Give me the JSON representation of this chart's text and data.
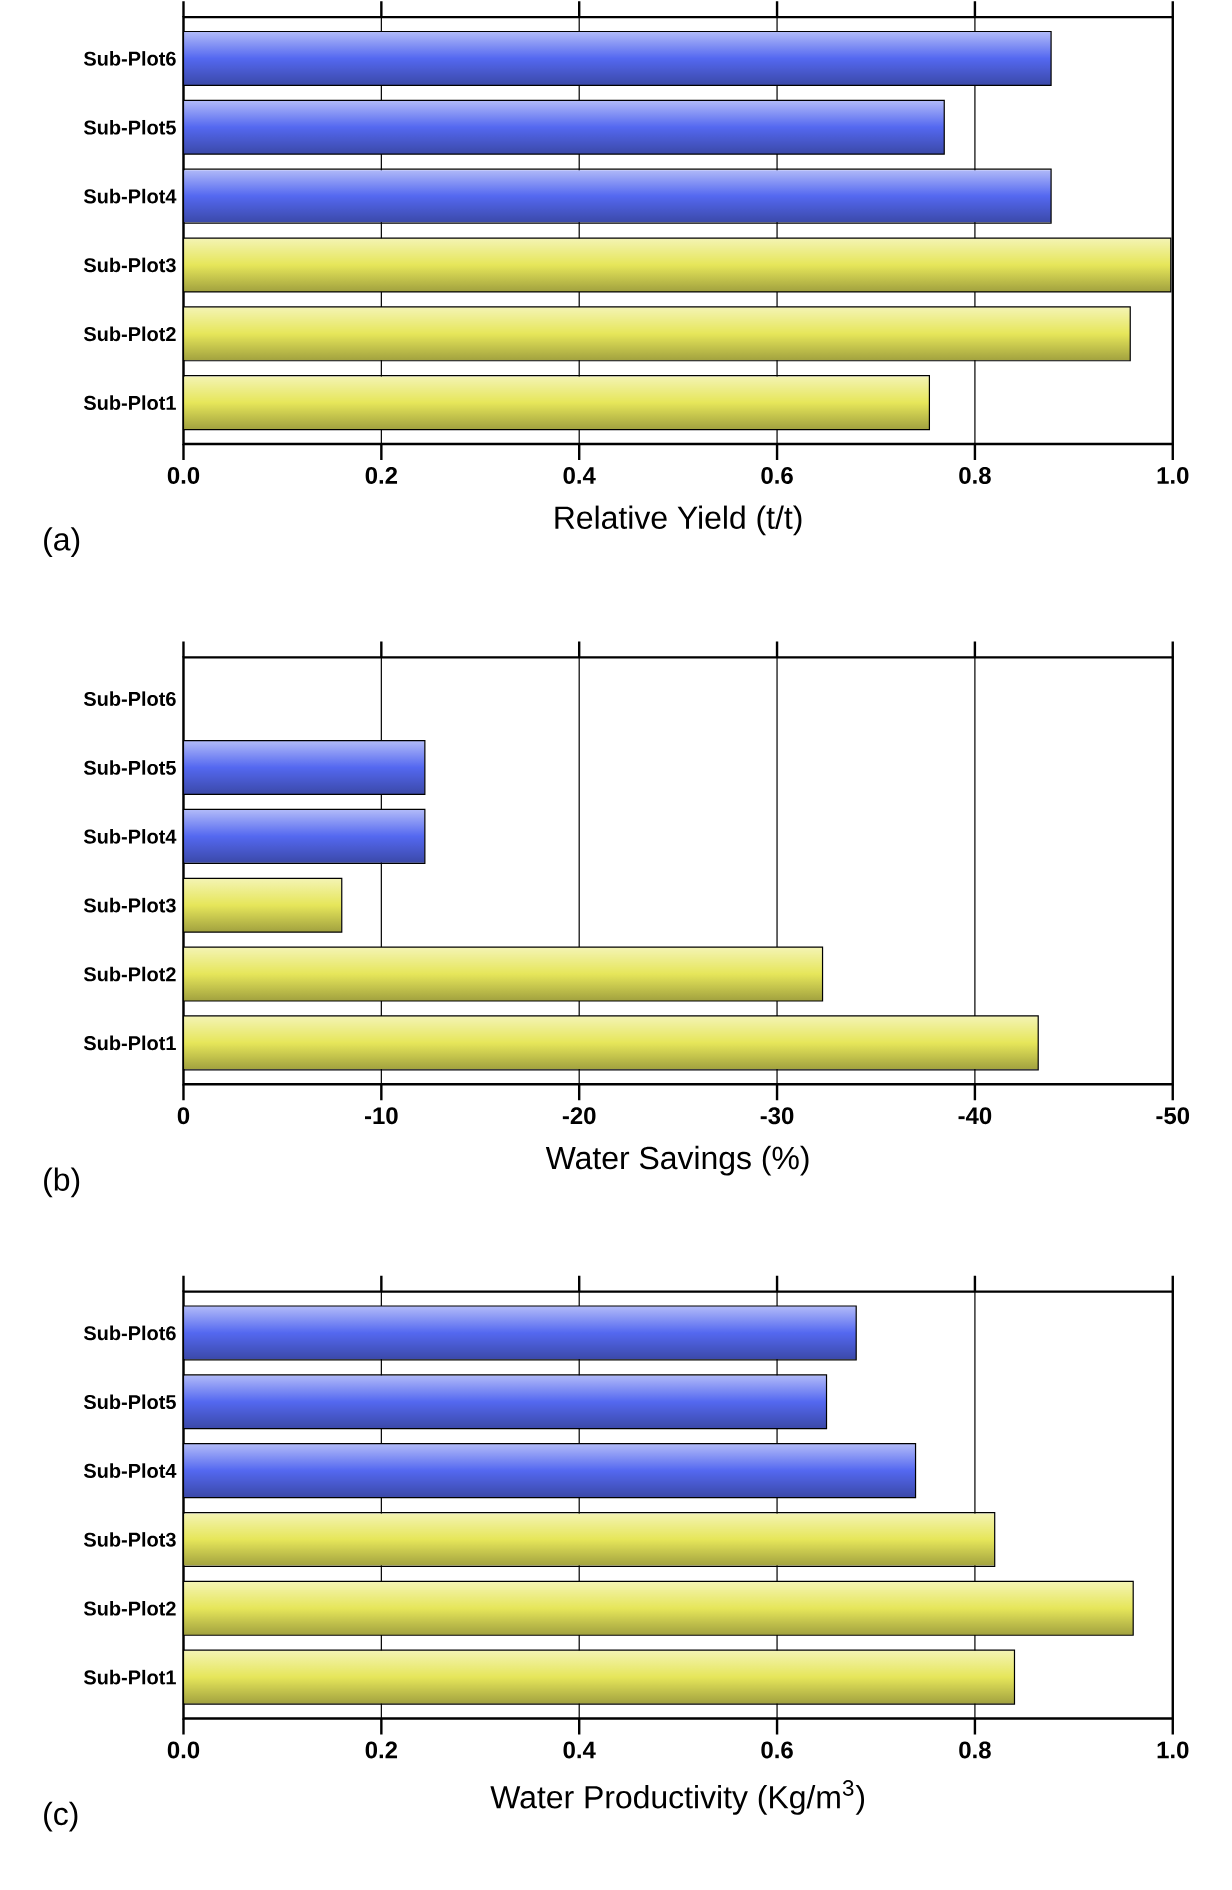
{
  "chart_data": [
    {
      "type": "bar",
      "orientation": "horizontal",
      "categories": [
        "Sub-Plot6",
        "Sub-Plot5",
        "Sub-Plot4",
        "Sub-Plot3",
        "Sub-Plot2",
        "Sub-Plot1"
      ],
      "values": [
        0.877,
        0.769,
        0.877,
        0.998,
        0.957,
        0.754
      ],
      "colors": [
        "#5468f0",
        "#5468f0",
        "#5468f0",
        "#e6e65a",
        "#e6e65a",
        "#e6e65a"
      ],
      "xlabel": "Relative Yield (t/t)",
      "xlim": [
        0,
        1
      ],
      "xticks": [
        {
          "value": 0,
          "label": "0.0"
        },
        {
          "value": 0.2,
          "label": "0.2"
        },
        {
          "value": 0.4,
          "label": "0.4"
        },
        {
          "value": 0.6,
          "label": "0.6"
        },
        {
          "value": 0.8,
          "label": "0.8"
        },
        {
          "value": 1,
          "label": "1.0"
        }
      ],
      "grid": "x",
      "annotations": [
        "(a)"
      ]
    },
    {
      "type": "bar",
      "orientation": "horizontal",
      "categories": [
        "Sub-Plot6",
        "Sub-Plot5",
        "Sub-Plot4",
        "Sub-Plot3",
        "Sub-Plot2",
        "Sub-Plot1"
      ],
      "values": [
        null,
        -12.2,
        -12.2,
        -8.0,
        -32.3,
        -43.2
      ],
      "colors": [
        "#5468f0",
        "#5468f0",
        "#5468f0",
        "#e6e65a",
        "#e6e65a",
        "#e6e65a"
      ],
      "xlabel": "Water Savings (%)",
      "xlim": [
        0,
        -50
      ],
      "xticks": [
        0,
        -10,
        -20,
        -30,
        -40,
        -50
      ],
      "grid": "x",
      "annotations": [
        "(b)"
      ]
    },
    {
      "type": "bar",
      "orientation": "horizontal",
      "categories": [
        "Sub-Plot6",
        "Sub-Plot5",
        "Sub-Plot4",
        "Sub-Plot3",
        "Sub-Plot2",
        "Sub-Plot1"
      ],
      "values": [
        0.68,
        0.65,
        0.74,
        0.82,
        0.96,
        0.84
      ],
      "colors": [
        "#5468f0",
        "#5468f0",
        "#5468f0",
        "#e6e65a",
        "#e6e65a",
        "#e6e65a"
      ],
      "xlabel": "Water Productivity (Kg/m$^{3}$)",
      "xlim": [
        0,
        1
      ],
      "xticks": [
        {
          "value": 0,
          "label": "0.0"
        },
        {
          "value": 0.2,
          "label": "0.2"
        },
        {
          "value": 0.4,
          "label": "0.4"
        },
        {
          "value": 0.6,
          "label": "0.6"
        },
        {
          "value": 0.8,
          "label": "0.8"
        },
        {
          "value": 1,
          "label": "1.0"
        }
      ],
      "grid": "x",
      "annotations": [
        "(c)"
      ]
    }
  ]
}
